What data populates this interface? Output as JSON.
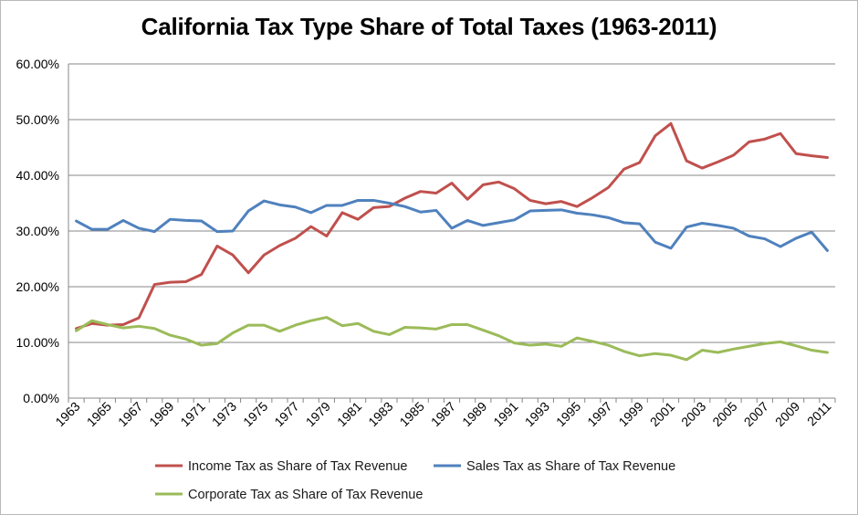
{
  "chart_data": {
    "type": "line",
    "title": "California Tax Type Share of Total Taxes (1963-2011)",
    "xlabel": "",
    "ylabel": "",
    "ylim": [
      0,
      60
    ],
    "y_ticks": [
      "0.00%",
      "10.00%",
      "20.00%",
      "30.00%",
      "40.00%",
      "50.00%",
      "60.00%"
    ],
    "x_ticks": [
      "1963",
      "1965",
      "1967",
      "1969",
      "1971",
      "1973",
      "1975",
      "1977",
      "1979",
      "1981",
      "1983",
      "1985",
      "1987",
      "1989",
      "1991",
      "1993",
      "1995",
      "1997",
      "1999",
      "2001",
      "2003",
      "2005",
      "2007",
      "2009",
      "2011"
    ],
    "x": [
      1963,
      1964,
      1965,
      1966,
      1967,
      1968,
      1969,
      1970,
      1971,
      1972,
      1973,
      1974,
      1975,
      1976,
      1977,
      1978,
      1979,
      1980,
      1981,
      1982,
      1983,
      1984,
      1985,
      1986,
      1987,
      1988,
      1989,
      1990,
      1991,
      1992,
      1993,
      1994,
      1995,
      1996,
      1997,
      1998,
      1999,
      2000,
      2001,
      2002,
      2003,
      2004,
      2005,
      2006,
      2007,
      2008,
      2009,
      2010,
      2011
    ],
    "grid": "horizontal",
    "legend_position": "bottom",
    "series": [
      {
        "name": "Income Tax as Share of Tax Revenue",
        "color": "#c0504d",
        "values": [
          12.5,
          13.4,
          13.1,
          13.2,
          14.4,
          20.4,
          20.8,
          20.9,
          22.2,
          27.3,
          25.7,
          22.5,
          25.7,
          27.4,
          28.7,
          30.8,
          29.1,
          33.3,
          32.1,
          34.2,
          34.4,
          35.9,
          37.1,
          36.8,
          38.6,
          35.7,
          38.3,
          38.8,
          37.6,
          35.5,
          34.9,
          35.3,
          34.4,
          36.0,
          37.8,
          41.1,
          42.3,
          47.1,
          49.3,
          42.6,
          41.3,
          42.4,
          43.6,
          46.0,
          46.5,
          47.5,
          43.9,
          43.5,
          43.2
        ]
      },
      {
        "name": "Sales Tax as Share of Tax Revenue",
        "color": "#4f81bd",
        "values": [
          31.8,
          30.3,
          30.3,
          31.9,
          30.5,
          29.9,
          32.1,
          31.9,
          31.8,
          29.9,
          30.0,
          33.6,
          35.4,
          34.7,
          34.3,
          33.3,
          34.6,
          34.6,
          35.5,
          35.5,
          35.0,
          34.4,
          33.4,
          33.7,
          30.5,
          31.9,
          31.0,
          31.5,
          32.0,
          33.6,
          33.7,
          33.8,
          33.2,
          32.9,
          32.4,
          31.5,
          31.3,
          28.0,
          26.9,
          30.7,
          31.4,
          31.0,
          30.5,
          29.1,
          28.6,
          27.2,
          28.7,
          29.8,
          26.5
        ]
      },
      {
        "name": "Corporate Tax as Share of Tax Revenue",
        "color": "#9bbb59",
        "values": [
          12.1,
          13.9,
          13.2,
          12.6,
          12.9,
          12.5,
          11.3,
          10.6,
          9.5,
          9.8,
          11.7,
          13.1,
          13.1,
          12.0,
          13.1,
          13.9,
          14.5,
          13.0,
          13.4,
          12.0,
          11.4,
          12.7,
          12.6,
          12.4,
          13.2,
          13.2,
          12.2,
          11.2,
          9.9,
          9.5,
          9.7,
          9.3,
          10.8,
          10.2,
          9.5,
          8.4,
          7.6,
          8.0,
          7.7,
          6.9,
          8.6,
          8.2,
          8.8,
          9.3,
          9.8,
          10.1,
          9.4,
          8.6,
          8.2
        ]
      }
    ]
  }
}
